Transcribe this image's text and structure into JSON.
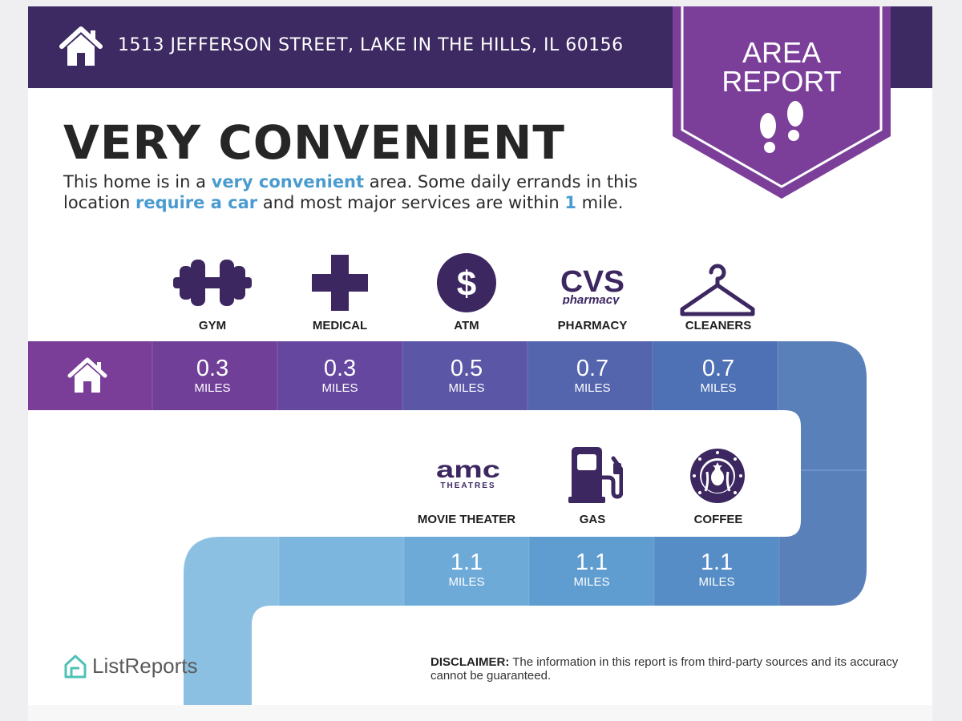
{
  "header": {
    "address": "1513 JEFFERSON STREET, LAKE IN THE HILLS, IL 60156",
    "badge_line1": "AREA",
    "badge_line2": "REPORT"
  },
  "headline": "VERY CONVENIENT",
  "description": {
    "p1": "This home is in a ",
    "h1": "very convenient",
    "p2": " area. Some daily errands in this location ",
    "h2": "require a car",
    "p3": " and most major services are within ",
    "h3": "1",
    "p4": " mile."
  },
  "row1": [
    {
      "label": "GYM",
      "value": "0.3",
      "unit": "MILES",
      "icon": "dumbbell-icon"
    },
    {
      "label": "MEDICAL",
      "value": "0.3",
      "unit": "MILES",
      "icon": "medical-cross-icon"
    },
    {
      "label": "ATM",
      "value": "0.5",
      "unit": "MILES",
      "icon": "dollar-icon"
    },
    {
      "label": "PHARMACY",
      "value": "0.7",
      "unit": "MILES",
      "icon": "cvs-logo"
    },
    {
      "label": "CLEANERS",
      "value": "0.7",
      "unit": "MILES",
      "icon": "hanger-icon"
    }
  ],
  "row2": [
    {
      "label": "MOVIE THEATER",
      "value": "1.1",
      "unit": "MILES",
      "icon": "amc-logo"
    },
    {
      "label": "GAS",
      "value": "1.1",
      "unit": "MILES",
      "icon": "gas-pump-icon"
    },
    {
      "label": "COFFEE",
      "value": "1.1",
      "unit": "MILES",
      "icon": "starbucks-logo"
    }
  ],
  "logos": {
    "cvs": "CVS",
    "cvs_sub": "pharmacy",
    "amc": "amc",
    "amc_sub": "THEATRES"
  },
  "footer": {
    "brand": "ListReports",
    "disclaimer_label": "DISCLAIMER:",
    "disclaimer_text": " The information in this report is from third-party sources and its accuracy cannot be guaranteed."
  },
  "colors": {
    "header_bg": "#3e2a63",
    "badge_purple": "#7b3f99",
    "highlight_blue": "#4a9bd0",
    "icon_purple": "#3c2761"
  }
}
